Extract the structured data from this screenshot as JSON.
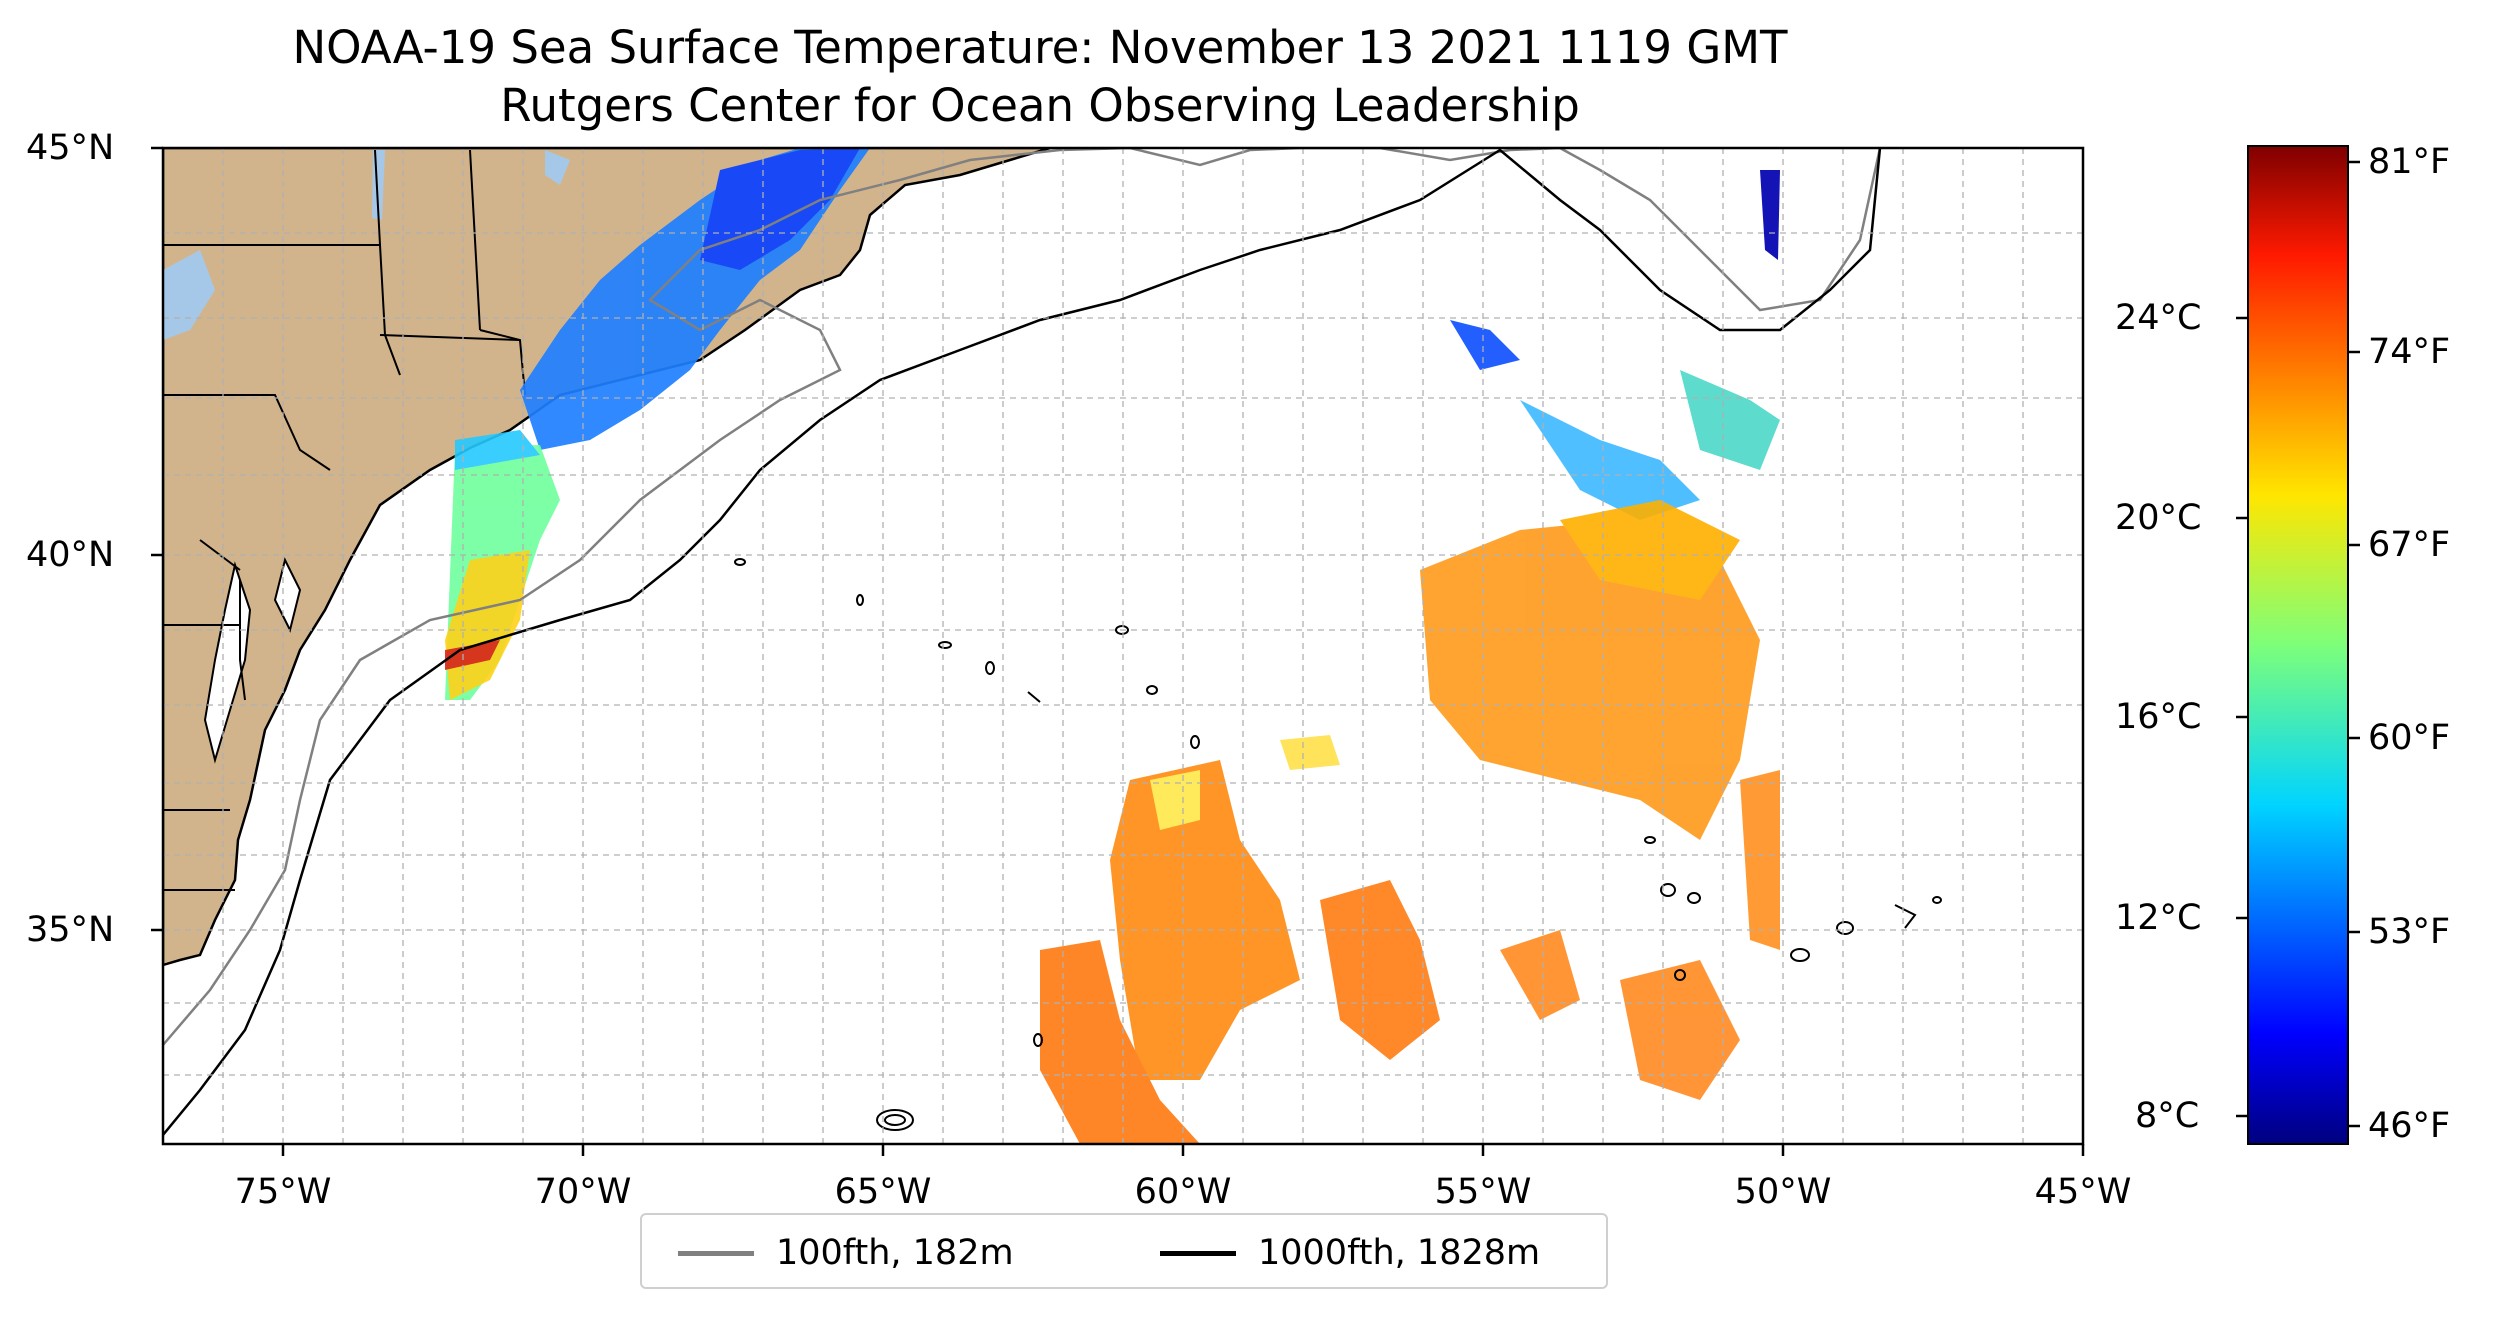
{
  "title": "NOAA-19 Sea Surface Temperature: November 13 2021 1119 GMT",
  "subtitle": "Rutgers Center for Ocean Observing Leadership",
  "map": {
    "lat_labels": [
      "45°N",
      "40°N",
      "35°N"
    ],
    "lon_labels": [
      "75°W",
      "70°W",
      "65°W",
      "60°W",
      "55°W",
      "50°W",
      "45°W"
    ],
    "extent": {
      "lon_min": -77,
      "lon_max": -45,
      "lat_min": 32.2,
      "lat_max": 45
    },
    "grid": true,
    "colors": {
      "land": "#d2b48c",
      "lake": "#a6c8e8",
      "coast": "#000000",
      "isobath_100": "#808080",
      "isobath_1000": "#000000"
    }
  },
  "colorbar": {
    "celsius_ticks": [
      "24°C",
      "20°C",
      "16°C",
      "12°C",
      "8°C"
    ],
    "fahrenheit_ticks": [
      "81°F",
      "74°F",
      "67°F",
      "60°F",
      "53°F",
      "46°F"
    ],
    "colormap": "jet"
  },
  "legend": {
    "items": [
      {
        "label": "100fth, 182m",
        "color": "#808080"
      },
      {
        "label": "1000fth, 1828m",
        "color": "#000000"
      }
    ]
  }
}
